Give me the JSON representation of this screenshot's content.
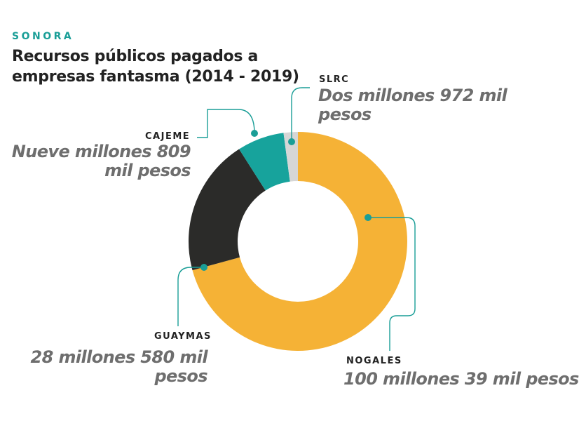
{
  "header": {
    "kicker": "SONORA",
    "title": "Recursos públicos pagados a empresas fantasma (2014 - 2019)"
  },
  "chart_data": {
    "type": "pie",
    "style": "donut",
    "title": "Recursos públicos pagados a empresas fantasma (2014 - 2019)",
    "unit": "pesos",
    "categories": [
      "NOGALES",
      "GUAYMAS",
      "CAJEME",
      "SLRC"
    ],
    "values": [
      100039000,
      28580000,
      9809000,
      2972000
    ],
    "value_labels": [
      "100 millones 39 mil pesos",
      "28 millones 580 mil pesos",
      "Nueve millones 809 mil pesos",
      "Dos millones 972 mil pesos"
    ],
    "colors": [
      "#f5b236",
      "#2b2b29",
      "#17a39c",
      "#d6d6d6"
    ],
    "leader_dot_color": "#1a9e97",
    "start_angle_deg": 0,
    "direction": "clockwise"
  }
}
